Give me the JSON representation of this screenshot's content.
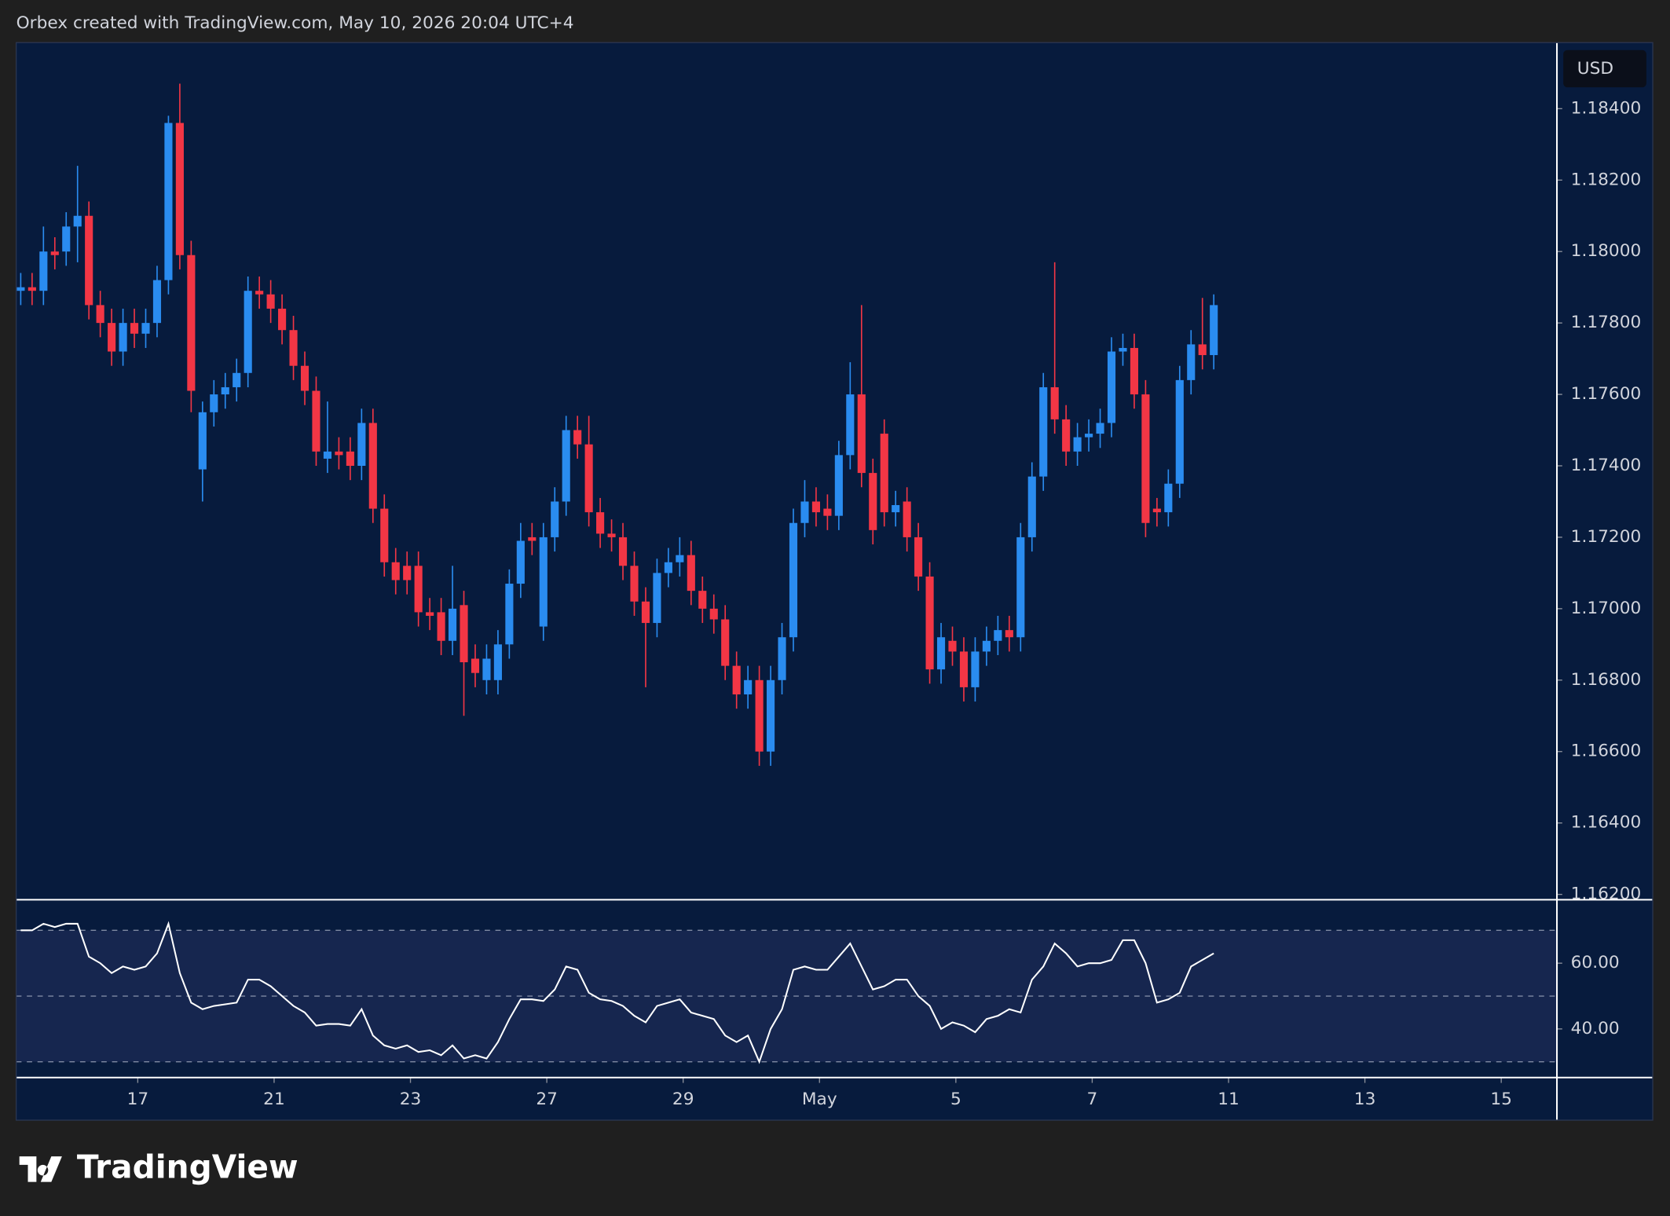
{
  "header": "Orbex created with TradingView.com, May 10, 2026 20:04 UTC+4",
  "logo": "TradingView",
  "currency": "USD",
  "chart_data": [
    {
      "type": "candlestick",
      "up_color": "#2a8cf0",
      "down_color": "#f23645",
      "open": [
        1.1789,
        1.179,
        1.1789,
        1.18,
        1.18,
        1.1807,
        1.181,
        1.1785,
        1.178,
        1.1772,
        1.178,
        1.1777,
        1.178,
        1.1792,
        1.1836,
        1.1799,
        1.1739,
        1.1755,
        1.176,
        1.1762,
        1.1766,
        1.1789,
        1.1788,
        1.1784,
        1.1778,
        1.1768,
        1.1761,
        1.1742,
        1.1744,
        1.1744,
        1.174,
        1.1752,
        1.1728,
        1.1713,
        1.1712,
        1.1712,
        1.1699,
        1.1699,
        1.1691,
        1.1701,
        1.1686,
        1.168,
        1.168,
        1.169,
        1.1707,
        1.172,
        1.1695,
        1.172,
        1.173,
        1.175,
        1.1746,
        1.1727,
        1.1721,
        1.172,
        1.1712,
        1.1702,
        1.1696,
        1.171,
        1.1713,
        1.1715,
        1.1705,
        1.17,
        1.1697,
        1.1684,
        1.1676,
        1.168,
        1.166,
        1.168,
        1.1692,
        1.1724,
        1.173,
        1.1728,
        1.1726,
        1.1743,
        1.176,
        1.1738,
        1.1749,
        1.1727,
        1.173,
        1.172,
        1.1709,
        1.1683,
        1.1691,
        1.1688,
        1.1678,
        1.1688,
        1.1691,
        1.1694,
        1.1692,
        1.172,
        1.1737,
        1.1762,
        1.1753,
        1.1744,
        1.1748,
        1.1749,
        1.1752,
        1.1772,
        1.1773,
        1.176,
        1.1728,
        1.1727,
        1.1735,
        1.1764,
        1.1774,
        1.1771
      ],
      "high": [
        1.1794,
        1.1794,
        1.1807,
        1.1804,
        1.1811,
        1.1824,
        1.1814,
        1.1789,
        1.1784,
        1.1784,
        1.1784,
        1.1784,
        1.1796,
        1.1838,
        1.1847,
        1.1803,
        1.1758,
        1.1764,
        1.1766,
        1.177,
        1.1793,
        1.1793,
        1.1792,
        1.1788,
        1.1782,
        1.1772,
        1.1765,
        1.1758,
        1.1748,
        1.1748,
        1.1756,
        1.1756,
        1.1732,
        1.1717,
        1.1716,
        1.1716,
        1.1703,
        1.1703,
        1.1712,
        1.1705,
        1.169,
        1.169,
        1.1694,
        1.1711,
        1.1724,
        1.1724,
        1.1724,
        1.1734,
        1.1754,
        1.1754,
        1.1754,
        1.1731,
        1.1725,
        1.1724,
        1.1716,
        1.1706,
        1.1714,
        1.1717,
        1.172,
        1.1719,
        1.1709,
        1.1704,
        1.1701,
        1.1688,
        1.1684,
        1.1684,
        1.1684,
        1.1696,
        1.1728,
        1.1736,
        1.1734,
        1.1732,
        1.1747,
        1.1769,
        1.1785,
        1.1742,
        1.1753,
        1.1733,
        1.1734,
        1.1724,
        1.1713,
        1.1696,
        1.1695,
        1.1692,
        1.1692,
        1.1695,
        1.1698,
        1.1698,
        1.1724,
        1.1741,
        1.1766,
        1.1797,
        1.1757,
        1.1752,
        1.1753,
        1.1756,
        1.1776,
        1.1777,
        1.1777,
        1.1764,
        1.1731,
        1.1739,
        1.1768,
        1.1778,
        1.1787,
        1.1788
      ],
      "low": [
        1.1785,
        1.1785,
        1.1785,
        1.1795,
        1.1796,
        1.1797,
        1.1781,
        1.1776,
        1.1768,
        1.1768,
        1.1773,
        1.1773,
        1.1776,
        1.1788,
        1.1795,
        1.1755,
        1.173,
        1.1751,
        1.1756,
        1.1758,
        1.1762,
        1.1784,
        1.178,
        1.1774,
        1.1764,
        1.1757,
        1.174,
        1.1738,
        1.1739,
        1.1736,
        1.1736,
        1.1724,
        1.1709,
        1.1704,
        1.1704,
        1.1695,
        1.1694,
        1.1687,
        1.1687,
        1.167,
        1.1678,
        1.1676,
        1.1676,
        1.1686,
        1.1703,
        1.1715,
        1.1691,
        1.1716,
        1.1726,
        1.1742,
        1.1723,
        1.1717,
        1.1716,
        1.1708,
        1.1698,
        1.1678,
        1.1692,
        1.1706,
        1.1709,
        1.1701,
        1.1696,
        1.1693,
        1.168,
        1.1672,
        1.1672,
        1.1656,
        1.1656,
        1.1676,
        1.1688,
        1.172,
        1.1723,
        1.1722,
        1.1722,
        1.1739,
        1.1734,
        1.1718,
        1.1723,
        1.1723,
        1.1716,
        1.1705,
        1.1679,
        1.1679,
        1.1684,
        1.1674,
        1.1674,
        1.1684,
        1.1687,
        1.1688,
        1.1688,
        1.1716,
        1.1733,
        1.1749,
        1.174,
        1.174,
        1.1744,
        1.1745,
        1.1748,
        1.1768,
        1.1756,
        1.172,
        1.1723,
        1.1723,
        1.1731,
        1.176,
        1.1767,
        1.1767
      ],
      "close": [
        1.179,
        1.1789,
        1.18,
        1.1799,
        1.1807,
        1.181,
        1.1785,
        1.178,
        1.1772,
        1.178,
        1.1777,
        1.178,
        1.1792,
        1.1836,
        1.1799,
        1.1761,
        1.1755,
        1.176,
        1.1762,
        1.1766,
        1.1789,
        1.1788,
        1.1784,
        1.1778,
        1.1768,
        1.1761,
        1.1744,
        1.1744,
        1.1743,
        1.174,
        1.1752,
        1.1728,
        1.1713,
        1.1708,
        1.1708,
        1.1699,
        1.1698,
        1.1691,
        1.17,
        1.1685,
        1.1682,
        1.1686,
        1.169,
        1.1707,
        1.1719,
        1.1719,
        1.172,
        1.173,
        1.175,
        1.1746,
        1.1727,
        1.1721,
        1.172,
        1.1712,
        1.1702,
        1.1696,
        1.171,
        1.1713,
        1.1715,
        1.1705,
        1.17,
        1.1697,
        1.1684,
        1.1676,
        1.168,
        1.166,
        1.168,
        1.1692,
        1.1724,
        1.173,
        1.1727,
        1.1726,
        1.1743,
        1.176,
        1.1738,
        1.1722,
        1.1727,
        1.1729,
        1.172,
        1.1709,
        1.1683,
        1.1692,
        1.1688,
        1.1678,
        1.1688,
        1.1691,
        1.1694,
        1.1692,
        1.172,
        1.1737,
        1.1762,
        1.1753,
        1.1744,
        1.1748,
        1.1749,
        1.1752,
        1.1772,
        1.1773,
        1.176,
        1.1724,
        1.1727,
        1.1735,
        1.1764,
        1.1774,
        1.1771,
        1.1785
      ],
      "xlim": [
        -0.4,
        135.2
      ],
      "xticks": [
        {
          "value": 10.3,
          "label": "17"
        },
        {
          "value": 22.3,
          "label": "21"
        },
        {
          "value": 34.3,
          "label": "23"
        },
        {
          "value": 46.3,
          "label": "27"
        },
        {
          "value": 58.3,
          "label": "29"
        },
        {
          "value": 70.3,
          "label": "May"
        },
        {
          "value": 82.3,
          "label": "5"
        },
        {
          "value": 94.3,
          "label": "7"
        },
        {
          "value": 106.3,
          "label": "11"
        },
        {
          "value": 118.3,
          "label": "13"
        },
        {
          "value": 130.3,
          "label": "15"
        }
      ],
      "ylim": [
        1.16185,
        1.18585
      ],
      "yticks": [
        {
          "value": 1.162,
          "label": "1.16200"
        },
        {
          "value": 1.164,
          "label": "1.16400"
        },
        {
          "value": 1.166,
          "label": "1.16600"
        },
        {
          "value": 1.168,
          "label": "1.16800"
        },
        {
          "value": 1.17,
          "label": "1.17000"
        },
        {
          "value": 1.172,
          "label": "1.17200"
        },
        {
          "value": 1.174,
          "label": "1.17400"
        },
        {
          "value": 1.176,
          "label": "1.17600"
        },
        {
          "value": 1.178,
          "label": "1.17800"
        },
        {
          "value": 1.18,
          "label": "1.18000"
        },
        {
          "value": 1.182,
          "label": "1.18200"
        },
        {
          "value": 1.184,
          "label": "1.18400"
        }
      ]
    },
    {
      "type": "line",
      "color": "#ffffff",
      "values": [
        70,
        70,
        72,
        71,
        72,
        72,
        62,
        60,
        57,
        59,
        58,
        59,
        63,
        72,
        57,
        48,
        46,
        47,
        47.5,
        48,
        55,
        55,
        53,
        50,
        47,
        45,
        41,
        41.5,
        41.5,
        41,
        46,
        38,
        35,
        34,
        35,
        33,
        33.5,
        32,
        35,
        31,
        32,
        31,
        36,
        43,
        49,
        49,
        48.5,
        52,
        59,
        58,
        51,
        49,
        48.5,
        47,
        44,
        42,
        47,
        48,
        49,
        45,
        44,
        43,
        38,
        36,
        38,
        30,
        40,
        46,
        58,
        59,
        58,
        58,
        62,
        66,
        59,
        52,
        53,
        55,
        55,
        50,
        47,
        40,
        42,
        41,
        39,
        43,
        44,
        46,
        45,
        55,
        59,
        66,
        63,
        59,
        60,
        60,
        61,
        67,
        67,
        60,
        48,
        49,
        51,
        59,
        61,
        63
      ],
      "levels": [
        30,
        50,
        70
      ],
      "ylim": [
        25.2,
        79.3
      ],
      "yticks": [
        {
          "value": 60,
          "label": "60.00"
        },
        {
          "value": 40,
          "label": "40.00"
        }
      ]
    }
  ]
}
